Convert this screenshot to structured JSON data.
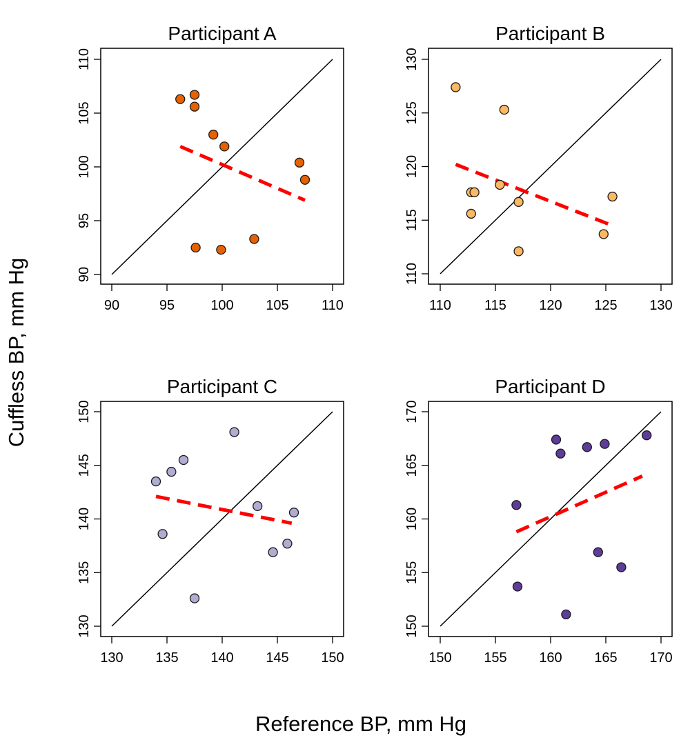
{
  "chart_data": {
    "type": "scatter",
    "layout": "2x2 grid",
    "xlabel": "Reference BP, mm Hg",
    "ylabel": "Cuffless BP, mm Hg",
    "reference_line": "identity (y = x), solid black",
    "fit_line_style": "dashed red regression line",
    "fit_line_color": "#FF0000",
    "panels": [
      {
        "title": "Participant A",
        "point_color": "#E66101",
        "xlim": [
          90,
          110
        ],
        "ylim": [
          90,
          110
        ],
        "xticks": [
          90,
          95,
          100,
          105,
          110
        ],
        "yticks": [
          90,
          95,
          100,
          105,
          110
        ],
        "points": [
          {
            "x": 96.2,
            "y": 106.3
          },
          {
            "x": 97.5,
            "y": 106.7
          },
          {
            "x": 97.5,
            "y": 105.6
          },
          {
            "x": 99.2,
            "y": 103.0
          },
          {
            "x": 100.2,
            "y": 101.9
          },
          {
            "x": 107.0,
            "y": 100.4
          },
          {
            "x": 107.5,
            "y": 98.8
          },
          {
            "x": 97.6,
            "y": 92.5
          },
          {
            "x": 99.9,
            "y": 92.3
          },
          {
            "x": 102.9,
            "y": 93.3
          }
        ],
        "fit_line": {
          "x": [
            96.2,
            107.5
          ],
          "y": [
            101.9,
            96.9
          ]
        }
      },
      {
        "title": "Participant B",
        "point_color": "#FDB863",
        "xlim": [
          110,
          130
        ],
        "ylim": [
          110,
          130
        ],
        "xticks": [
          110,
          115,
          120,
          125,
          130
        ],
        "yticks": [
          110,
          115,
          120,
          125,
          130
        ],
        "points": [
          {
            "x": 111.4,
            "y": 127.4
          },
          {
            "x": 115.8,
            "y": 125.3
          },
          {
            "x": 112.8,
            "y": 117.6
          },
          {
            "x": 113.1,
            "y": 117.6
          },
          {
            "x": 115.4,
            "y": 118.3
          },
          {
            "x": 117.1,
            "y": 116.7
          },
          {
            "x": 112.8,
            "y": 115.6
          },
          {
            "x": 117.1,
            "y": 112.1
          },
          {
            "x": 124.8,
            "y": 113.7
          },
          {
            "x": 125.6,
            "y": 117.2
          }
        ],
        "fit_line": {
          "x": [
            111.4,
            125.6
          ],
          "y": [
            120.2,
            114.5
          ]
        }
      },
      {
        "title": "Participant C",
        "point_color": "#B2ABD2",
        "xlim": [
          130,
          150
        ],
        "ylim": [
          130,
          150
        ],
        "xticks": [
          130,
          135,
          140,
          145,
          150
        ],
        "yticks": [
          130,
          135,
          140,
          145,
          150
        ],
        "points": [
          {
            "x": 141.1,
            "y": 148.1
          },
          {
            "x": 136.5,
            "y": 145.5
          },
          {
            "x": 135.4,
            "y": 144.4
          },
          {
            "x": 134.0,
            "y": 143.5
          },
          {
            "x": 143.2,
            "y": 141.2
          },
          {
            "x": 146.5,
            "y": 140.6
          },
          {
            "x": 134.6,
            "y": 138.6
          },
          {
            "x": 145.9,
            "y": 137.7
          },
          {
            "x": 144.6,
            "y": 136.9
          },
          {
            "x": 137.5,
            "y": 132.6
          }
        ],
        "fit_line": {
          "x": [
            134.0,
            146.3
          ],
          "y": [
            142.1,
            139.6
          ]
        }
      },
      {
        "title": "Participant D",
        "point_color": "#5E3C99",
        "xlim": [
          150,
          170
        ],
        "ylim": [
          150,
          170
        ],
        "xticks": [
          150,
          155,
          160,
          165,
          170
        ],
        "yticks": [
          150,
          155,
          160,
          165,
          170
        ],
        "points": [
          {
            "x": 160.5,
            "y": 167.4
          },
          {
            "x": 160.9,
            "y": 166.1
          },
          {
            "x": 163.3,
            "y": 166.7
          },
          {
            "x": 164.9,
            "y": 167.0
          },
          {
            "x": 168.7,
            "y": 167.8
          },
          {
            "x": 156.9,
            "y": 161.3
          },
          {
            "x": 164.3,
            "y": 156.9
          },
          {
            "x": 166.4,
            "y": 155.5
          },
          {
            "x": 157.0,
            "y": 153.7
          },
          {
            "x": 161.4,
            "y": 151.1
          }
        ],
        "fit_line": {
          "x": [
            156.9,
            168.3
          ],
          "y": [
            158.8,
            164.0
          ]
        }
      }
    ]
  }
}
